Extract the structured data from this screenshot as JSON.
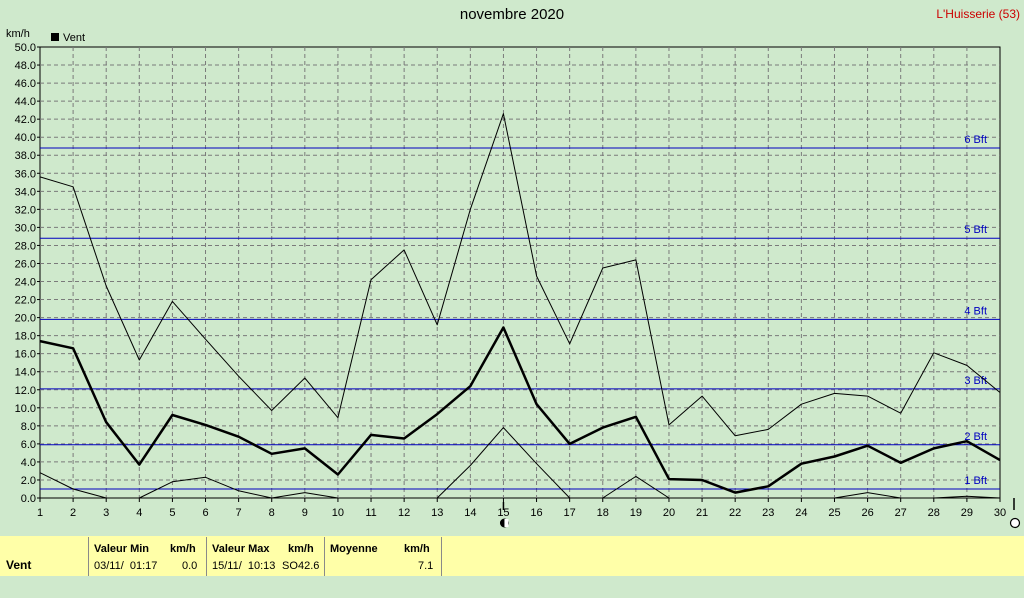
{
  "title": "novembre 2020",
  "station": "L'Huisserie (53)",
  "chart_data": {
    "type": "line",
    "ylabel": "km/h",
    "ylim": [
      0,
      50
    ],
    "yticks": [
      "0.0",
      "2.0",
      "4.0",
      "6.0",
      "8.0",
      "10.0",
      "12.0",
      "14.0",
      "16.0",
      "18.0",
      "20.0",
      "22.0",
      "24.0",
      "26.0",
      "28.0",
      "30.0",
      "32.0",
      "34.0",
      "36.0",
      "38.0",
      "40.0",
      "42.0",
      "44.0",
      "46.0",
      "48.0",
      "50.0"
    ],
    "x": [
      1,
      2,
      3,
      4,
      5,
      6,
      7,
      8,
      9,
      10,
      11,
      12,
      13,
      14,
      15,
      16,
      17,
      18,
      19,
      20,
      21,
      22,
      23,
      24,
      25,
      26,
      27,
      28,
      29,
      30
    ],
    "grid": true,
    "legend": {
      "label": "Vent",
      "position": "top-left"
    },
    "series": [
      {
        "name": "Vent",
        "style": "bold",
        "values": [
          17.4,
          16.6,
          8.4,
          3.7,
          9.2,
          8.1,
          6.8,
          4.9,
          5.5,
          2.6,
          7.0,
          6.6,
          9.3,
          12.4,
          18.9,
          10.4,
          6.0,
          7.8,
          9.0,
          2.1,
          2.0,
          0.6,
          1.3,
          3.8,
          4.6,
          5.8,
          3.9,
          5.5,
          6.3,
          4.2
        ]
      },
      {
        "style": "thin",
        "values": [
          35.6,
          34.5,
          23.5,
          15.3,
          21.8,
          17.6,
          13.5,
          9.7,
          13.3,
          8.9,
          24.2,
          27.5,
          19.2,
          32.0,
          42.6,
          24.6,
          17.1,
          25.5,
          26.4,
          8.1,
          11.3,
          6.9,
          7.6,
          10.4,
          11.6,
          11.3,
          9.4,
          16.1,
          14.7,
          11.7
        ]
      },
      {
        "style": "thin",
        "values": [
          2.8,
          1.0,
          0.0,
          0.0,
          1.8,
          2.3,
          0.8,
          0.0,
          0.6,
          0.0,
          null,
          null,
          0.0,
          3.6,
          7.8,
          3.8,
          0.0,
          0.0,
          2.4,
          0.0,
          null,
          null,
          null,
          null,
          0.0,
          0.6,
          0.0,
          0.0,
          0.2,
          0.0
        ]
      }
    ],
    "beaufort_lines": [
      {
        "value": 1.0,
        "label": "1 Bft"
      },
      {
        "value": 5.9,
        "label": "2 Bft"
      },
      {
        "value": 12.1,
        "label": "3 Bft"
      },
      {
        "value": 19.8,
        "label": "4 Bft"
      },
      {
        "value": 28.8,
        "label": "5 Bft"
      },
      {
        "value": 38.8,
        "label": "6 Bft"
      }
    ],
    "marker_x": 15
  },
  "footer": {
    "row_label": "Vent",
    "min_header": "Valeur Min",
    "min_unit": "km/h",
    "min_date": "03/11/  01:17",
    "min_value": "0.0",
    "max_header": "Valeur Max",
    "max_unit": "km/h",
    "max_date": "15/11/  10:13",
    "max_dir": "SO",
    "max_value": "42.6",
    "avg_header": "Moyenne",
    "avg_unit": "km/h",
    "avg_value": "7.1"
  },
  "colors": {
    "background": "#cfe9cc",
    "beaufort": "#0000c0",
    "footer": "#ffffa8",
    "station": "#cc0000"
  }
}
